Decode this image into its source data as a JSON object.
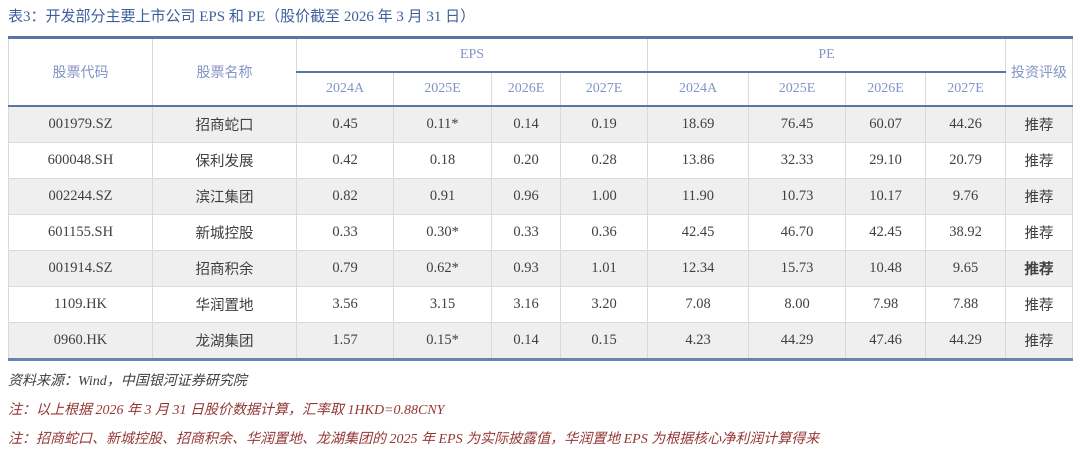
{
  "title": "表3：开发部分主要上市公司 EPS 和 PE（股价截至 2026 年 3 月 31 日）",
  "colors": {
    "title_blue": "#3e5f9e",
    "accent_border_blue": "#5b74a8",
    "header_text_blue": "#8394c6",
    "note_red": "#943735",
    "row_alt_bg": "#efefef",
    "data_text": "#404040"
  },
  "table": {
    "headers": {
      "stock_code": "股票代码",
      "stock_name": "股票名称",
      "eps_group": "EPS",
      "pe_group": "PE",
      "rating": "投资评级"
    },
    "year_cols": [
      "2024A",
      "2025E",
      "2026E",
      "2027E"
    ],
    "rows": [
      {
        "code": "001979.SZ",
        "name": "招商蛇口",
        "eps": [
          "0.45",
          "0.11*",
          "0.14",
          "0.19"
        ],
        "pe": [
          "18.69",
          "76.45",
          "60.07",
          "44.26"
        ],
        "rating": "推荐",
        "rating_bold": false
      },
      {
        "code": "600048.SH",
        "name": "保利发展",
        "eps": [
          "0.42",
          "0.18",
          "0.20",
          "0.28"
        ],
        "pe": [
          "13.86",
          "32.33",
          "29.10",
          "20.79"
        ],
        "rating": "推荐",
        "rating_bold": false
      },
      {
        "code": "002244.SZ",
        "name": "滨江集团",
        "eps": [
          "0.82",
          "0.91",
          "0.96",
          "1.00"
        ],
        "pe": [
          "11.90",
          "10.73",
          "10.17",
          "9.76"
        ],
        "rating": "推荐",
        "rating_bold": false
      },
      {
        "code": "601155.SH",
        "name": "新城控股",
        "eps": [
          "0.33",
          "0.30*",
          "0.33",
          "0.36"
        ],
        "pe": [
          "42.45",
          "46.70",
          "42.45",
          "38.92"
        ],
        "rating": "推荐",
        "rating_bold": false
      },
      {
        "code": "001914.SZ",
        "name": "招商积余",
        "eps": [
          "0.79",
          "0.62*",
          "0.93",
          "1.01"
        ],
        "pe": [
          "12.34",
          "15.73",
          "10.48",
          "9.65"
        ],
        "rating": "推荐",
        "rating_bold": true
      },
      {
        "code": "1109.HK",
        "name": "华润置地",
        "eps": [
          "3.56",
          "3.15",
          "3.16",
          "3.20"
        ],
        "pe": [
          "7.08",
          "8.00",
          "7.98",
          "7.88"
        ],
        "rating": "推荐",
        "rating_bold": false
      },
      {
        "code": "0960.HK",
        "name": "龙湖集团",
        "eps": [
          "1.57",
          "0.15*",
          "0.14",
          "0.15"
        ],
        "pe": [
          "4.23",
          "44.29",
          "47.46",
          "44.29"
        ],
        "rating": "推荐",
        "rating_bold": false
      }
    ]
  },
  "footer": {
    "source": "资料来源：Wind，中国银河证券研究院",
    "note1": "注：以上根据 2026 年 3 月 31 日股价数据计算，汇率取 1HKD=0.88CNY",
    "note2": "注：招商蛇口、新城控股、招商积余、华润置地、龙湖集团的 2025 年 EPS 为实际披露值，华润置地 EPS 为根据核心净利润计算得来"
  }
}
